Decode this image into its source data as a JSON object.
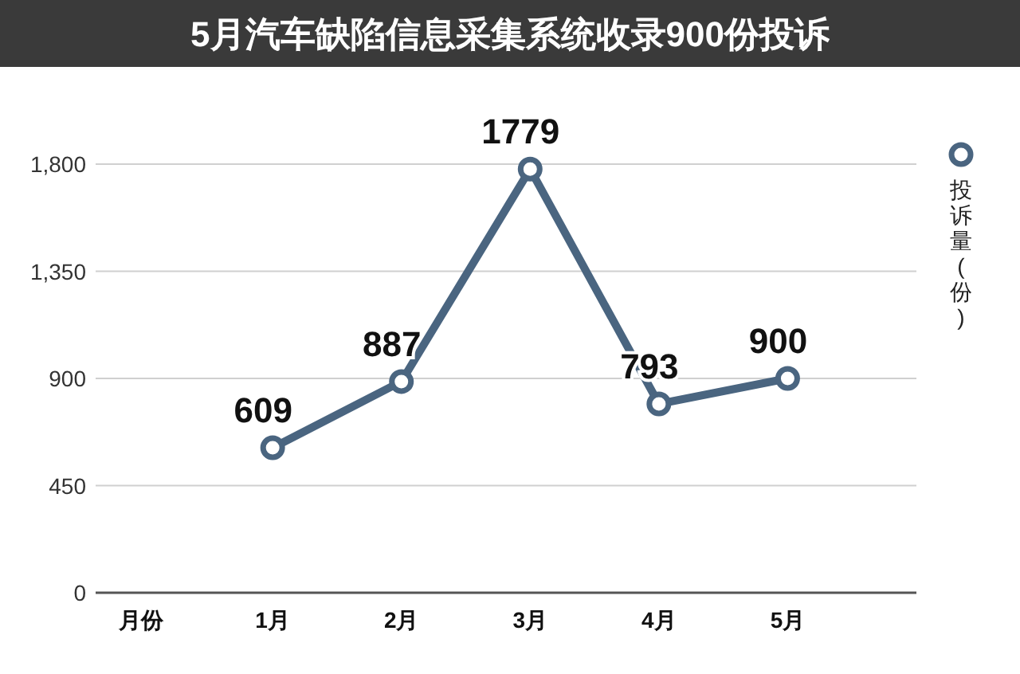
{
  "chart_data": {
    "type": "line",
    "title": "5月汽车缺陷信息采集系统收录900份投诉",
    "xlabel": "月份",
    "categories": [
      "1月",
      "2月",
      "3月",
      "4月",
      "5月"
    ],
    "series": [
      {
        "name": "投诉量(份)",
        "color": "#4a6580",
        "values": [
          609,
          887,
          1779,
          793,
          900
        ]
      }
    ],
    "ylim": [
      0,
      1800
    ],
    "yticks": [
      0,
      450,
      900,
      {
        "value": 1350,
        "label": "1,350"
      },
      {
        "value": 1800,
        "label": "1,800"
      }
    ],
    "grid": "y",
    "legend": "right",
    "marker": "circle",
    "line_style": "solid",
    "data_labels": true
  }
}
